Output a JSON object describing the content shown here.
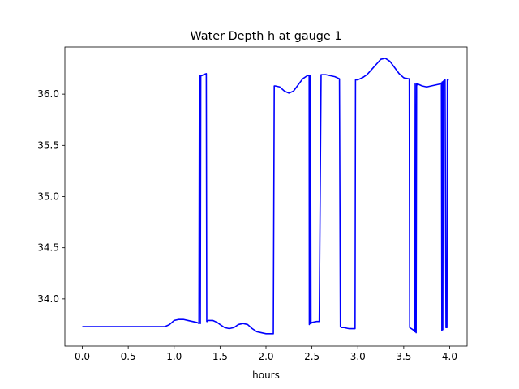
{
  "chart_data": {
    "type": "line",
    "title": "Water Depth h at gauge 1",
    "xlabel": "hours",
    "ylabel": "",
    "xlim": [
      -0.19,
      4.19
    ],
    "ylim": [
      33.54,
      36.46
    ],
    "xticks": [
      0.0,
      0.5,
      1.0,
      1.5,
      2.0,
      2.5,
      3.0,
      3.5,
      4.0
    ],
    "xtick_labels": [
      "0.0",
      "0.5",
      "1.0",
      "1.5",
      "2.0",
      "2.5",
      "3.0",
      "3.5",
      "4.0"
    ],
    "yticks": [
      34.0,
      34.5,
      35.0,
      35.5,
      36.0
    ],
    "ytick_labels": [
      "34.0",
      "34.5",
      "35.0",
      "35.5",
      "36.0"
    ],
    "grid": false,
    "color": "#0000ff",
    "series": [
      {
        "x": [
          0.0,
          0.3,
          0.6,
          0.8,
          0.9,
          0.95,
          1.0,
          1.05,
          1.1,
          1.15,
          1.2,
          1.25,
          1.27,
          1.275,
          1.28,
          1.285,
          1.29,
          1.3,
          1.32,
          1.35,
          1.355,
          1.36,
          1.37,
          1.42,
          1.47,
          1.5,
          1.55,
          1.6,
          1.65,
          1.7,
          1.75,
          1.8,
          1.85,
          1.9,
          1.95,
          2.0,
          2.05,
          2.08,
          2.09,
          2.1,
          2.15,
          2.2,
          2.25,
          2.3,
          2.35,
          2.4,
          2.45,
          2.47,
          2.472,
          2.475,
          2.48,
          2.482,
          2.485,
          2.49,
          2.5,
          2.55,
          2.57,
          2.58,
          2.6,
          2.65,
          2.7,
          2.75,
          2.8,
          2.81,
          2.82,
          2.85,
          2.9,
          2.95,
          2.97,
          2.975,
          2.98,
          3.0,
          3.05,
          3.1,
          3.15,
          3.2,
          3.25,
          3.3,
          3.35,
          3.4,
          3.45,
          3.5,
          3.55,
          3.56,
          3.565,
          3.6,
          3.62,
          3.625,
          3.63,
          3.635,
          3.64,
          3.645,
          3.65,
          3.7,
          3.75,
          3.8,
          3.85,
          3.9,
          3.91,
          3.915,
          3.92,
          3.925,
          3.93,
          3.935,
          3.94,
          3.945,
          3.95,
          3.96,
          3.965,
          3.97,
          3.975,
          3.98,
          3.985,
          3.99
        ],
        "y": [
          33.73,
          33.73,
          33.73,
          33.73,
          33.73,
          33.75,
          33.79,
          33.8,
          33.8,
          33.79,
          33.78,
          33.77,
          33.76,
          36.18,
          36.18,
          33.76,
          36.18,
          36.18,
          36.19,
          36.2,
          33.78,
          33.78,
          33.79,
          33.79,
          33.77,
          33.75,
          33.72,
          33.71,
          33.72,
          33.75,
          33.76,
          33.75,
          33.71,
          33.68,
          33.67,
          33.66,
          33.66,
          33.66,
          36.08,
          36.08,
          36.07,
          36.03,
          36.01,
          36.03,
          36.09,
          36.15,
          36.18,
          36.18,
          33.75,
          36.18,
          36.18,
          33.76,
          36.18,
          33.76,
          33.77,
          33.78,
          33.78,
          33.78,
          36.19,
          36.19,
          36.18,
          36.17,
          36.15,
          33.73,
          33.72,
          33.72,
          33.71,
          33.71,
          33.71,
          36.14,
          36.14,
          36.14,
          36.16,
          36.19,
          36.24,
          36.29,
          36.34,
          36.35,
          36.32,
          36.26,
          36.2,
          36.16,
          36.15,
          36.15,
          33.72,
          33.7,
          33.68,
          36.1,
          33.68,
          33.67,
          36.1,
          36.09,
          36.1,
          36.08,
          36.07,
          36.08,
          36.09,
          36.1,
          36.11,
          33.69,
          36.12,
          33.7,
          36.12,
          36.13,
          36.13,
          36.14,
          36.14,
          33.72,
          33.72,
          33.72,
          36.14,
          36.14,
          36.14,
          36.14
        ]
      }
    ]
  }
}
